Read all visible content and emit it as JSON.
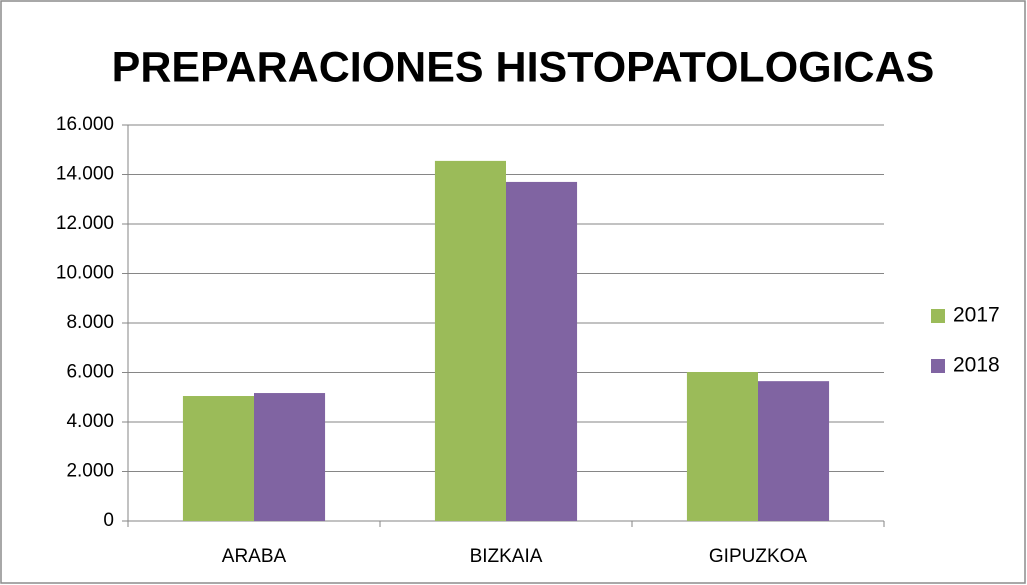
{
  "chart_data": {
    "type": "bar",
    "title": "PREPARACIONES HISTOPATOLOGICAS",
    "categories": [
      "ARABA",
      "BIZKAIA",
      "GIPUZKOA"
    ],
    "series": [
      {
        "name": "2017",
        "color": "#9bbb59",
        "values": [
          5050,
          14550,
          6020
        ]
      },
      {
        "name": "2018",
        "color": "#8064a2",
        "values": [
          5170,
          13700,
          5650
        ]
      }
    ],
    "ylim": [
      0,
      16000
    ],
    "yticks": [
      0,
      {
        "value": 2000,
        "label": "2.000"
      },
      {
        "value": 4000,
        "label": "4.000"
      },
      {
        "value": 6000,
        "label": "6.000"
      },
      {
        "value": 8000,
        "label": "8.000"
      },
      {
        "value": 10000,
        "label": "10.000"
      },
      {
        "value": 12000,
        "label": "12.000"
      },
      {
        "value": 14000,
        "label": "14.000"
      },
      {
        "value": 16000,
        "label": "16.000"
      }
    ],
    "grid": true,
    "legend": "right"
  }
}
